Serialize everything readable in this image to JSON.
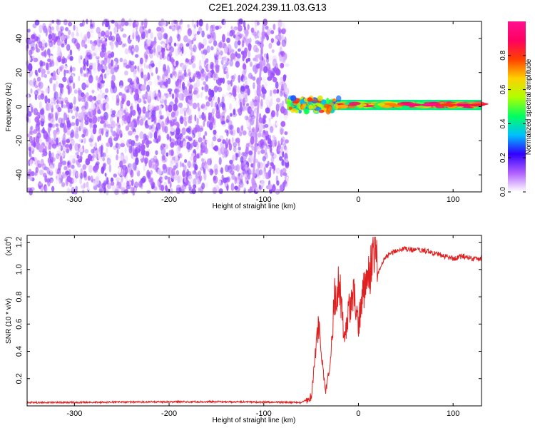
{
  "title": "C2E1.2024.239.11.03.G13",
  "chart_data": [
    {
      "type": "heatmap",
      "xlabel": "Height of straight line (km)",
      "ylabel": "Frequency (Hz)",
      "xlim": [
        -350,
        130
      ],
      "ylim": [
        -50,
        50
      ],
      "x_ticks": [
        -300,
        -200,
        -100,
        0,
        100
      ],
      "y_ticks": [
        -40,
        -20,
        0,
        20,
        40
      ],
      "colorbar": {
        "label": "Normalized spectral amplitude",
        "range": [
          0,
          1
        ],
        "ticks": [
          "0.0",
          "0.2",
          "0.4",
          "0.6",
          "0.8"
        ],
        "ticks_values": [
          0.0,
          0.2,
          0.4,
          0.6,
          0.8
        ],
        "colors": [
          "#ffffff",
          "#b060ff",
          "#3000ff",
          "#00c0ff",
          "#00ff60",
          "#b0ff00",
          "#ffd000",
          "#ff4000",
          "#ff0060",
          "#ff1090"
        ]
      },
      "regions": [
        {
          "name": "noise",
          "x_range": [
            -350,
            -75
          ],
          "y_range": [
            -50,
            50
          ],
          "amplitude_range": [
            0.0,
            0.15
          ]
        },
        {
          "name": "carrier",
          "x_range": [
            -75,
            130
          ],
          "y_center": 1,
          "y_halfwidth": 3,
          "amplitude_range": [
            0.3,
            1.0
          ]
        }
      ],
      "streak": {
        "x_top": -100,
        "x_bottom": -112,
        "amplitude": 0.08
      }
    },
    {
      "type": "line",
      "xlabel": "Height of straight line (km)",
      "ylabel": "SNR (10 * v/v)",
      "y_multiplier": "(x10",
      "y_multiplier_exp": "4",
      "y_multiplier_close": ")",
      "xlim": [
        -350,
        130
      ],
      "ylim": [
        0,
        1.25
      ],
      "x_ticks": [
        -300,
        -200,
        -100,
        0,
        100
      ],
      "y_ticks": [
        "0.2",
        "0.4",
        "0.6",
        "0.8",
        "1.0",
        "1.2"
      ],
      "y_ticks_values": [
        0.2,
        0.4,
        0.6,
        0.8,
        1.0,
        1.2
      ],
      "color": "#e02020",
      "series": [
        {
          "x": [
            -350,
            -300,
            -250,
            -200,
            -150,
            -100,
            -60,
            -50,
            -45,
            -42,
            -38,
            -35,
            -30,
            -25,
            -20,
            -15,
            -10,
            -5,
            0,
            5,
            10,
            15,
            18,
            20,
            25,
            30,
            35,
            40,
            50,
            60,
            70,
            80,
            90,
            100,
            110,
            120,
            130
          ],
          "y": [
            0.025,
            0.025,
            0.028,
            0.03,
            0.03,
            0.028,
            0.025,
            0.06,
            0.4,
            0.6,
            0.3,
            0.1,
            0.3,
            0.8,
            0.9,
            0.5,
            0.7,
            0.8,
            0.6,
            0.85,
            0.95,
            1.05,
            1.25,
            0.95,
            1.05,
            1.1,
            1.12,
            1.14,
            1.15,
            1.14,
            1.14,
            1.12,
            1.1,
            1.08,
            1.1,
            1.08,
            1.08
          ]
        }
      ]
    }
  ]
}
